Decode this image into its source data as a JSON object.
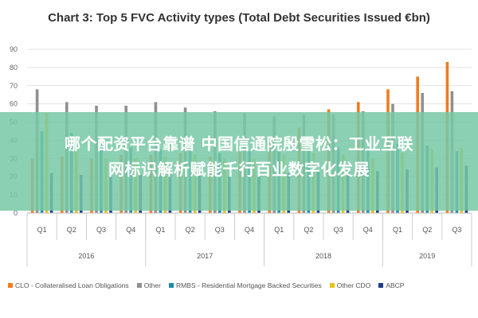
{
  "chart_data": {
    "type": "bar",
    "title": "Chart 3: Top 5 FVC Activity types (Total Debt Securities Issued €bn)",
    "categories": [
      "Q1",
      "Q2",
      "Q3",
      "Q4",
      "Q1",
      "Q2",
      "Q3",
      "Q4",
      "Q1",
      "Q2",
      "Q3",
      "Q4",
      "Q1",
      "Q2",
      "Q3"
    ],
    "year_groups": [
      {
        "label": "2016",
        "count": 4
      },
      {
        "label": "2017",
        "count": 4
      },
      {
        "label": "2018",
        "count": 4
      },
      {
        "label": "2019",
        "count": 3
      }
    ],
    "ylim": [
      0,
      90
    ],
    "yticks": [
      "0",
      "10",
      "20",
      "30",
      "40",
      "50",
      "60",
      "70",
      "80",
      "90"
    ],
    "grid": true,
    "legend_position": "bottom",
    "series": [
      {
        "name": "CLO - Collateralised Loan Obligations",
        "color": "#f07c1e",
        "values": [
          30,
          31,
          30,
          32,
          32,
          33,
          31,
          35,
          40,
          47,
          57,
          61,
          68,
          75,
          83
        ]
      },
      {
        "name": "Other",
        "color": "#909090",
        "values": [
          68,
          61,
          59,
          59,
          61,
          58,
          56,
          55,
          53,
          54,
          54,
          56,
          60,
          66,
          67
        ]
      },
      {
        "name": "RMBS - Residential Mortgage Backed Securities",
        "color": "#1f8aa8",
        "values": [
          45,
          44,
          38,
          36,
          35,
          34,
          33,
          34,
          34,
          36,
          36,
          35,
          38,
          37,
          34
        ]
      },
      {
        "name": "Other CDO",
        "color": "#e8c21a",
        "values": [
          55,
          36,
          30,
          30,
          31,
          32,
          30,
          30,
          32,
          33,
          32,
          30,
          33,
          35,
          36
        ]
      },
      {
        "name": "ABCP",
        "color": "#1a3c8c",
        "values": [
          22,
          21,
          20,
          21,
          22,
          21,
          20,
          21,
          22,
          23,
          23,
          23,
          24,
          25,
          26
        ]
      }
    ]
  },
  "overlay": {
    "line1": "哪个配资平台靠谱 中国信通院殷雪松：工业互联",
    "line2": "网标识解析赋能千行百业数字化发展",
    "background": "#78c8a5"
  }
}
